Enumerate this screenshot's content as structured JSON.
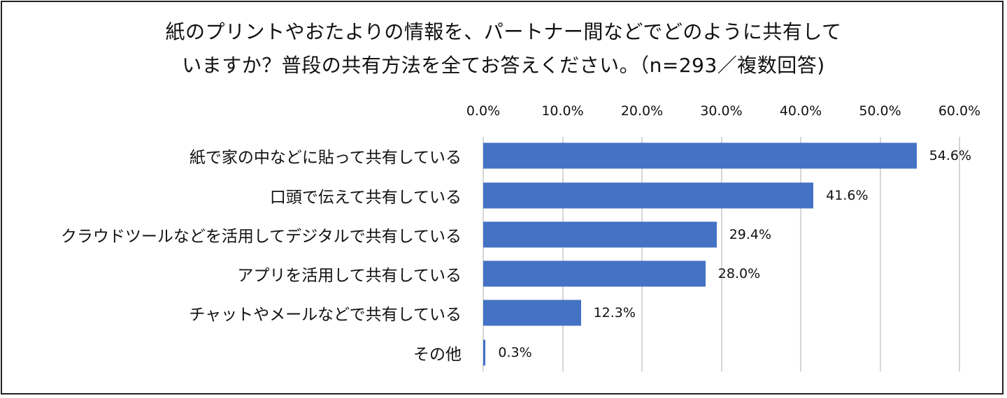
{
  "title": {
    "line1": "紙のプリントやおたよりの情報を、パートナー間などでどのように共有して",
    "line2": "いますか？普段の共有方法を全てお答えください。（n=293／複数回答)"
  },
  "colors": {
    "bar": "#4472C4",
    "grid": "#D6D6D6",
    "text": "#111111",
    "border": "#222222"
  },
  "chart_data": {
    "type": "bar",
    "orientation": "horizontal",
    "title": "紙のプリントやおたよりの情報を、パートナー間などでどのように共有していますか？普段の共有方法を全てお答えください。（n=293／複数回答)",
    "categories": [
      "紙で家の中などに貼って共有している",
      "口頭で伝えて共有している",
      "クラウドツールなどを活用してデジタルで共有している",
      "アプリを活用して共有している",
      "チャットやメールなどで共有している",
      "その他"
    ],
    "values": [
      54.6,
      41.6,
      29.4,
      28.0,
      12.3,
      0.3
    ],
    "value_labels": [
      "54.6%",
      "41.6%",
      "29.4%",
      "28.0%",
      "12.3%",
      "0.3%"
    ],
    "xlabel": "",
    "ylabel": "",
    "xlim": [
      0,
      60
    ],
    "x_ticks": [
      "0.0%",
      "10.0%",
      "20.0%",
      "30.0%",
      "40.0%",
      "50.0%",
      "60.0%"
    ],
    "axis_position": "top",
    "grid": true,
    "legend": null
  }
}
